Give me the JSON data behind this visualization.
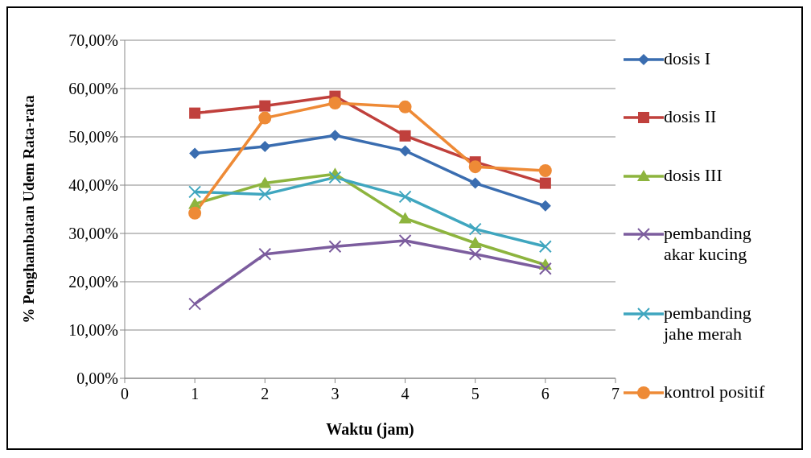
{
  "chart_data": {
    "type": "line",
    "xlabel": "Waktu (jam)",
    "ylabel": "% Penghambatan Udem Rata-rata",
    "x": [
      1,
      2,
      3,
      4,
      5,
      6
    ],
    "series": [
      {
        "name": "dosis I",
        "color": "#3a6db0",
        "marker": "diamond",
        "values": [
          46.6,
          48.0,
          50.3,
          47.1,
          40.4,
          35.7
        ]
      },
      {
        "name": "dosis II",
        "color": "#c0403c",
        "marker": "square",
        "values": [
          54.9,
          56.4,
          58.4,
          50.2,
          44.8,
          40.4
        ]
      },
      {
        "name": "dosis III",
        "color": "#8db43e",
        "marker": "triangle",
        "values": [
          36.1,
          40.4,
          42.3,
          33.1,
          28.0,
          23.5
        ]
      },
      {
        "name": "pembanding akar kucing",
        "color": "#7c5d9e",
        "marker": "cross",
        "values": [
          15.4,
          25.7,
          27.3,
          28.5,
          25.7,
          22.7
        ]
      },
      {
        "name": "pembanding jahe merah",
        "color": "#3fa6bf",
        "marker": "cross",
        "values": [
          38.6,
          38.1,
          41.6,
          37.6,
          30.9,
          27.3
        ]
      },
      {
        "name": "kontrol positif",
        "color": "#ee8a36",
        "marker": "circle",
        "values": [
          34.2,
          53.9,
          57.0,
          56.2,
          43.8,
          43.0
        ]
      }
    ],
    "xlim": [
      0,
      7
    ],
    "xticks": [
      0,
      1,
      2,
      3,
      4,
      5,
      6,
      7
    ],
    "ylim": [
      0,
      70
    ],
    "yticks": [
      {
        "value": 0,
        "label": "0,00%"
      },
      {
        "value": 10,
        "label": "10,00%"
      },
      {
        "value": 20,
        "label": "20,00%"
      },
      {
        "value": 30,
        "label": "30,00%"
      },
      {
        "value": 40,
        "label": "40,00%"
      },
      {
        "value": 50,
        "label": "50,00%"
      },
      {
        "value": 60,
        "label": "60,00%"
      },
      {
        "value": 70,
        "label": "70,00%"
      }
    ],
    "grid": "y",
    "legend": "right",
    "line_style": "solid"
  }
}
